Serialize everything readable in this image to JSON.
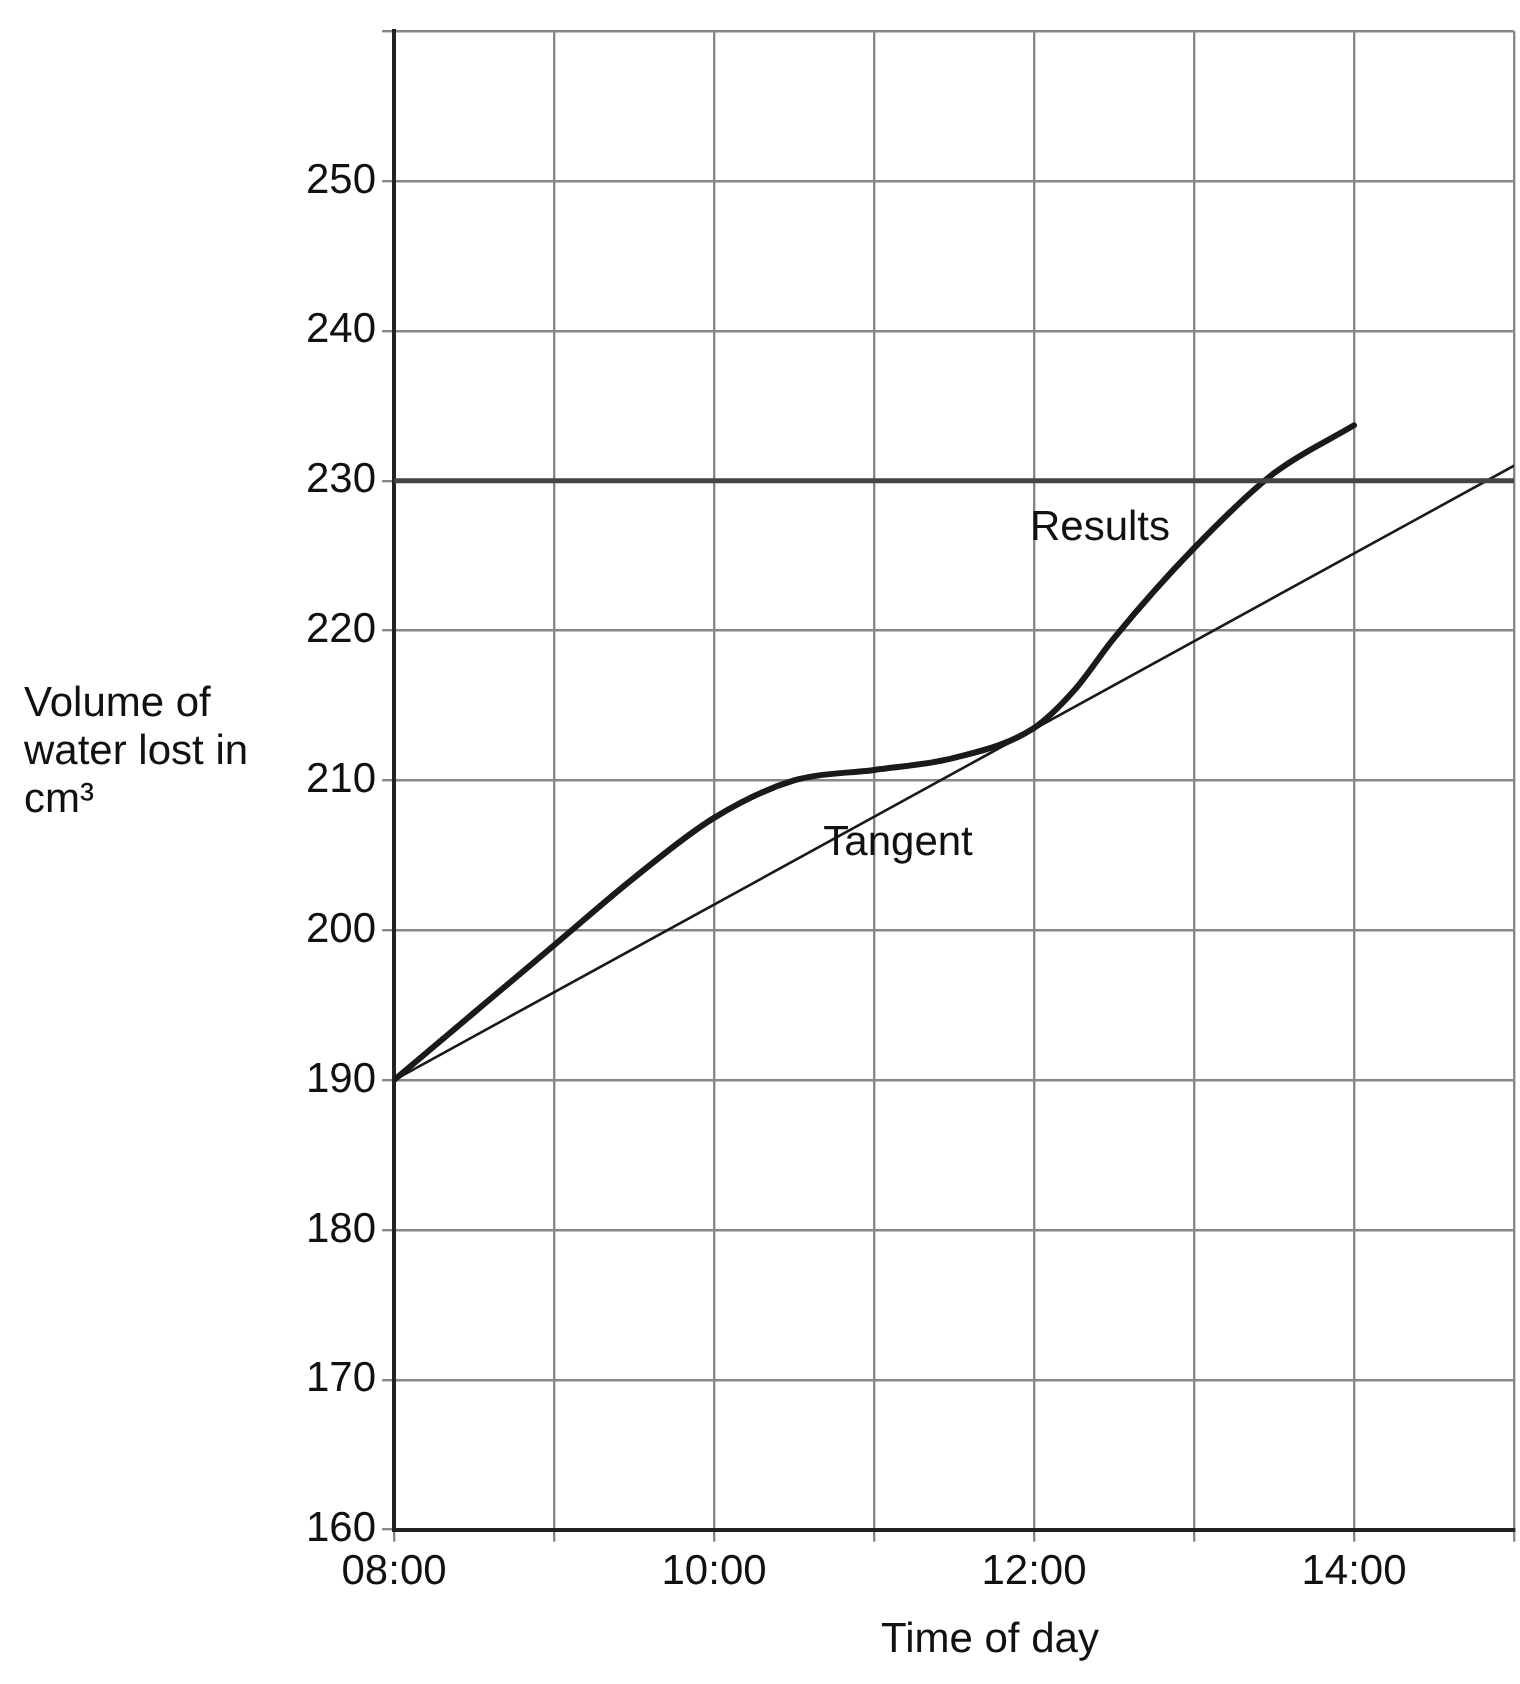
{
  "chart_data": {
    "type": "line",
    "xlabel": "Time of day",
    "ylabel": "Volume of water lost in cm³",
    "xlim": [
      8,
      15
    ],
    "xticks": [
      {
        "value": 8,
        "label": "08:00"
      },
      {
        "value": 9,
        "label": null
      },
      {
        "value": 10,
        "label": "10:00"
      },
      {
        "value": 11,
        "label": null
      },
      {
        "value": 12,
        "label": "12:00"
      },
      {
        "value": 13,
        "label": null
      },
      {
        "value": 14,
        "label": "14:00"
      },
      {
        "value": 15,
        "label": null
      }
    ],
    "ylim": [
      160,
      260
    ],
    "yticks": [
      160,
      170,
      180,
      190,
      200,
      210,
      220,
      230,
      240,
      250,
      {
        "value": 260,
        "label": null
      }
    ],
    "grid": true,
    "legend": false,
    "marker": "none",
    "line_style": "solid",
    "series": [
      {
        "name": "Results",
        "color": "#1a1a1a",
        "x": [
          8,
          8.5,
          9,
          9.5,
          10,
          10.5,
          11,
          11.5,
          12,
          12.25,
          12.5,
          13,
          13.5,
          14
        ],
        "values": [
          190,
          194.5,
          199,
          203.5,
          207.5,
          210,
          210.7,
          211.5,
          213.5,
          216,
          219.5,
          225.5,
          230.5,
          233.7
        ]
      },
      {
        "name": "Tangent",
        "color": "#1a1a1a",
        "x": [
          8,
          15
        ],
        "values": [
          190,
          231
        ]
      }
    ],
    "ref_lines": [
      {
        "axis": "y",
        "value": 230,
        "color": "#444444"
      }
    ]
  }
}
